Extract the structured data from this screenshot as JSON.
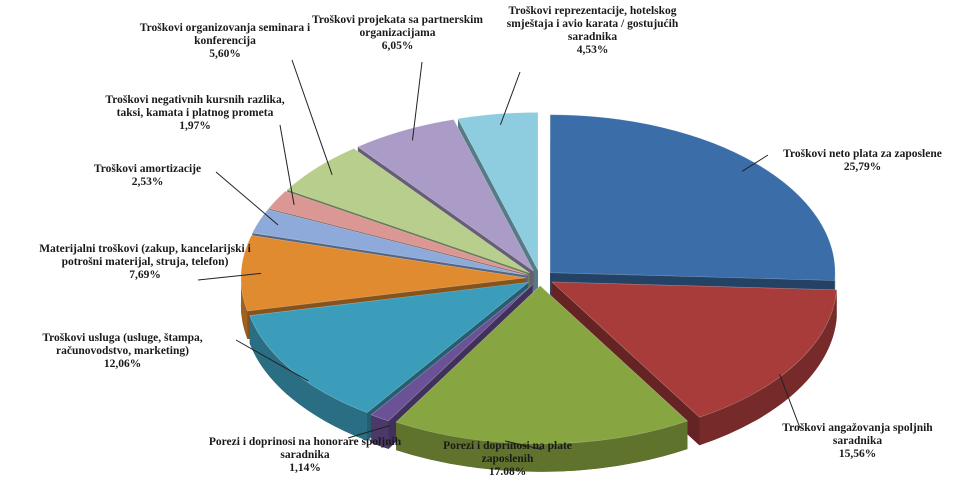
{
  "chart_data": {
    "type": "pie",
    "categories": [
      "Troškovi neto plata za zaposlene",
      "Troškovi angažovanja spoljnih saradnika",
      "Porezi i doprinosi na plate zaposlenih",
      "Porezi i doprinosi na honorare spoljnih saradnika",
      "Troškovi usluga (usluge, štampa, računovodstvo, marketing)",
      "Materijalni troškovi (zakup, kancelarijski i potrošni materijal, struja, telefon)",
      "Troškovi amortizacije",
      "Troškovi negativnih kursnih razlika, taksi, kamata i platnog prometa",
      "Troškovi organizovanja seminara i konferencija",
      "Troškovi projekata sa partnerskim organizacijama",
      "Troškovi reprezentacije, hotelskog smještaja i avio karata / gostujućih saradnika"
    ],
    "values": [
      25.79,
      15.56,
      17.08,
      1.14,
      12.06,
      7.69,
      2.53,
      1.97,
      5.6,
      6.05,
      4.53
    ],
    "value_labels": [
      "25,79%",
      "15,56%",
      "17.08%",
      "1,14%",
      "12,06%",
      "7,69%",
      "2,53%",
      "1,97%",
      "5,60%",
      "6,05%",
      "4,53%"
    ],
    "colors": [
      "#3b6ea8",
      "#a83c3a",
      "#87a540",
      "#6b5196",
      "#3c9dbb",
      "#e18b31",
      "#8eaadb",
      "#db9794",
      "#b7ce8c",
      "#aa9cc6",
      "#8ecddf"
    ]
  }
}
